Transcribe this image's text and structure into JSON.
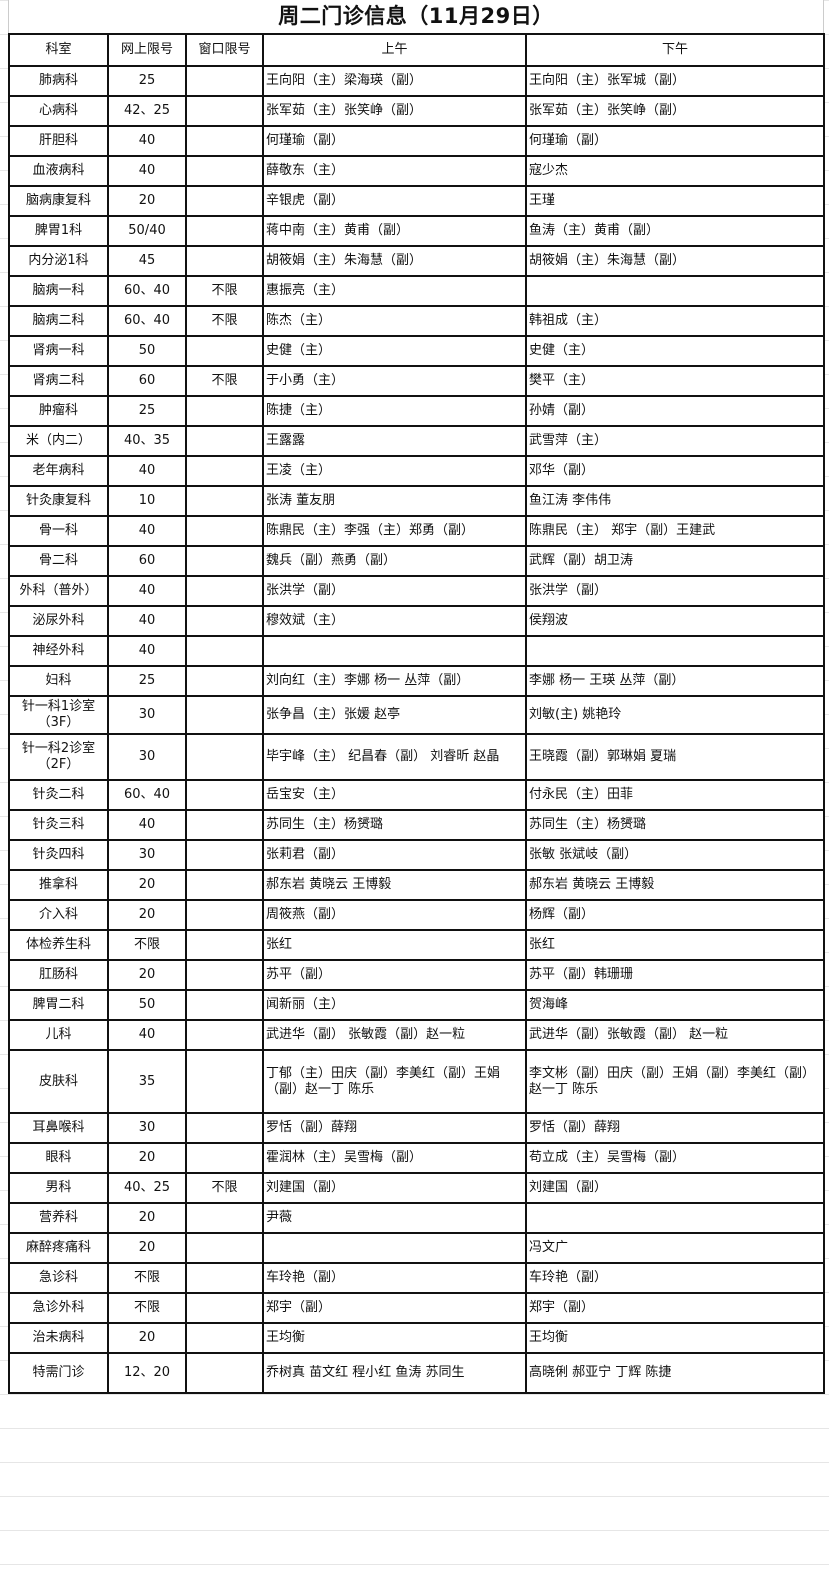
{
  "title": "周二门诊信息（11月29日）",
  "headers": [
    "科室",
    "网上限号",
    "窗口限号",
    "上午",
    "下午"
  ],
  "rows": [
    [
      "肺病科",
      "25",
      "",
      "王向阳（主）梁海瑛（副）",
      "王向阳（主）张军城（副）"
    ],
    [
      "心病科",
      "42、25",
      "",
      "张军茹（主）张笑峥（副）",
      "张军茹（主）张笑峥（副）"
    ],
    [
      "肝胆科",
      "40",
      "",
      "何瑾瑜（副）",
      "何瑾瑜（副）"
    ],
    [
      "血液病科",
      "40",
      "",
      "薛敬东（主）",
      "寇少杰"
    ],
    [
      "脑病康复科",
      "20",
      "",
      "辛银虎（副）",
      "王瑾"
    ],
    [
      "脾胃1科",
      "50/40",
      "",
      "蒋中南（主）黄甫（副）",
      "鱼涛（主）黄甫（副）"
    ],
    [
      "内分泌1科",
      "45",
      "",
      "胡筱娟（主）朱海慧（副）",
      "胡筱娟（主）朱海慧（副）"
    ],
    [
      "脑病一科",
      "60、40",
      "不限",
      "惠振亮（主）",
      ""
    ],
    [
      "脑病二科",
      "60、40",
      "不限",
      "陈杰（主）",
      "韩祖成（主）"
    ],
    [
      "肾病一科",
      "50",
      "",
      "史健（主）",
      "史健（主）"
    ],
    [
      "肾病二科",
      "60",
      "不限",
      "于小勇（主）",
      "樊平（主）"
    ],
    [
      "肿瘤科",
      "25",
      "",
      "陈捷（主）",
      "孙婧（副）"
    ],
    [
      "米（内二）",
      "40、35",
      "",
      "王露露",
      "武雪萍（主）"
    ],
    [
      "老年病科",
      "40",
      "",
      "王凌（主）",
      "邓华（副）"
    ],
    [
      "针灸康复科",
      "10",
      "",
      "张涛 董友朋",
      "鱼江涛 李伟伟"
    ],
    [
      "骨一科",
      "40",
      "",
      "陈鼎民（主）李强（主）郑勇（副）",
      "陈鼎民（主） 郑宇（副）王建武"
    ],
    [
      "骨二科",
      "60",
      "",
      "魏兵（副）燕勇（副）",
      "武辉（副）胡卫涛"
    ],
    [
      "外科（普外）",
      "40",
      "",
      "张洪学（副）",
      "张洪学（副）"
    ],
    [
      "泌尿外科",
      "40",
      "",
      "穆效斌（主）",
      "侯翔波"
    ],
    [
      "神经外科",
      "40",
      "",
      "",
      ""
    ],
    [
      "妇科",
      "25",
      "",
      "刘向红（主）李娜 杨一 丛萍（副）",
      "李娜 杨一 王瑛 丛萍（副）"
    ],
    [
      "针一科1诊室（3F）",
      "30",
      "",
      "张争昌（主）张媛 赵亭",
      "刘敏(主) 姚艳玲"
    ],
    [
      "针一科2诊室（2F）",
      "30",
      "",
      "毕宇峰（主） 纪昌春（副） 刘睿昕 赵晶",
      "王晓霞（副）郭琳娟 夏瑞"
    ],
    [
      "针灸二科",
      "60、40",
      "",
      "岳宝安（主）",
      "付永民（主）田菲"
    ],
    [
      "针灸三科",
      "40",
      "",
      "苏同生（主）杨赟璐",
      "苏同生（主）杨赟璐"
    ],
    [
      "针灸四科",
      "30",
      "",
      "张莉君（副）",
      "张敏 张斌岐（副）"
    ],
    [
      "推拿科",
      "20",
      "",
      "郝东岩 黄晓云 王博毅",
      "郝东岩 黄晓云 王博毅"
    ],
    [
      "介入科",
      "20",
      "",
      "周筱燕（副）",
      "杨辉（副）"
    ],
    [
      "体检养生科",
      "不限",
      "",
      "张红",
      "张红"
    ],
    [
      "肛肠科",
      "20",
      "",
      "苏平（副）",
      "苏平（副）韩珊珊"
    ],
    [
      "脾胃二科",
      "50",
      "",
      "闻新丽（主）",
      "贺海峰"
    ],
    [
      "儿科",
      "40",
      "",
      "武进华（副） 张敏霞（副）赵一粒",
      "武进华（副）张敏霞（副） 赵一粒"
    ],
    [
      "皮肤科",
      "35",
      "",
      "丁郁（主）田庆（副）李美红（副）王娟（副）赵一丁 陈乐",
      "李文彬（副）田庆（副）王娟（副）李美红（副） 赵一丁 陈乐"
    ],
    [
      "耳鼻喉科",
      "30",
      "",
      "罗恬（副）薛翔",
      "罗恬（副）薛翔"
    ],
    [
      "眼科",
      "20",
      "",
      "霍润林（主）吴雪梅（副）",
      "苟立成（主）吴雪梅（副）"
    ],
    [
      "男科",
      "40、25",
      "不限",
      "刘建国（副）",
      "刘建国（副）"
    ],
    [
      "营养科",
      "20",
      "",
      "尹薇",
      ""
    ],
    [
      "麻醉疼痛科",
      "20",
      "",
      "",
      "冯文广"
    ],
    [
      "急诊科",
      "不限",
      "",
      "车玲艳（副）",
      "车玲艳（副）"
    ],
    [
      "急诊外科",
      "不限",
      "",
      "郑宇（副）",
      "郑宇（副）"
    ],
    [
      "治未病科",
      "20",
      "",
      "王均衡",
      "王均衡"
    ],
    [
      "特需门诊",
      "12、20",
      "",
      " 乔树真 苗文红 程小红 鱼涛 苏同生",
      "高晓俐 郝亚宁 丁辉 陈捷"
    ]
  ]
}
